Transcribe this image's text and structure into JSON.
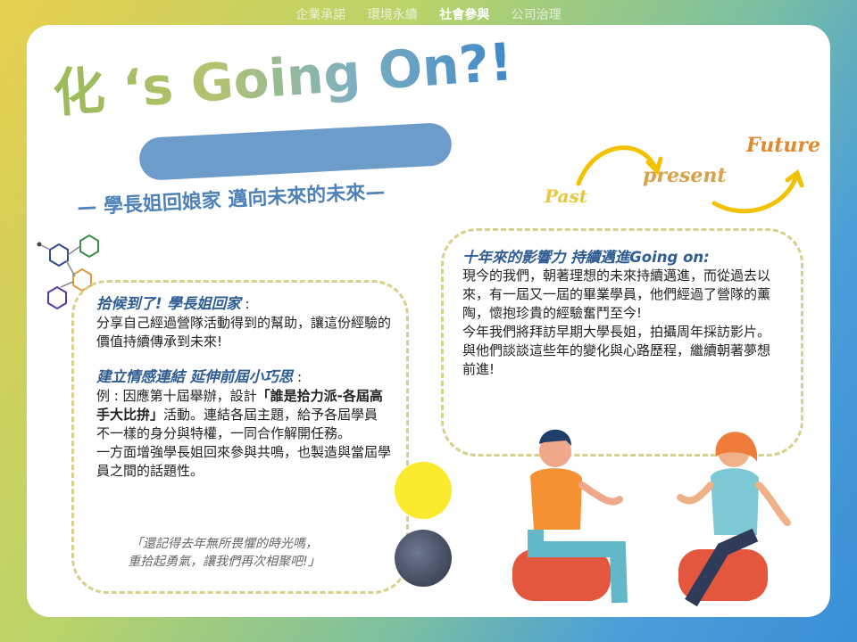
{
  "nav": {
    "items": [
      {
        "label": "企業承諾",
        "active": false
      },
      {
        "label": "環境永續",
        "active": false
      },
      {
        "label": "社會參與",
        "active": true
      },
      {
        "label": "公司治理",
        "active": false
      }
    ]
  },
  "banner": {
    "title": "化 ‘s Going On?!",
    "subtitle": "— 學長姐回娘家 邁向未來的未來—"
  },
  "timeline": {
    "past": "Past",
    "present": "present",
    "future": "Future"
  },
  "left_panel": {
    "heading1": "拾候到了! 學長姐回家",
    "heading1_suffix": " :",
    "body1": "分享自己經過營隊活動得到的幫助，讓這份經驗的價值持續傳承到未來!",
    "heading2": "建立情感連結  延伸前屆小巧思",
    "heading2_suffix": " :",
    "body2_prefix": "例 : 因應第十屆舉辦，設計",
    "body2_highlight": "「誰是拾力派-各屆高手大比拚」",
    "body2_suffix": "活動。連結各屆主題，給予各屆學員不一樣的身分與特權，一同合作解開任務。",
    "body3": "一方面增強學長姐回來參與共鳴，也製造與當屆學員之間的話題性。",
    "quote_line1": "「還記得去年無所畏懼的時光嗎，",
    "quote_line2": "重拾起勇氣，讓我們再次相聚吧!」"
  },
  "right_panel": {
    "heading": "十年來的影響力 持續邁進Going on:",
    "body1": "現今的我們，朝著理想的未來持續邁進，而從過去以來，有一屆又一屆的畢業學員，他們經過了營隊的薰陶，懷抱珍貴的經驗奮鬥至今!",
    "body2": "今年我們將拜訪早期大學長姐，拍攝周年採訪影片。與他們談談這些年的變化與心路歷程，繼續朝著夢想前進!"
  },
  "colors": {
    "accent_blue": "#2f5d93",
    "dash_border": "#d8d08c",
    "pill": "#6e9cca"
  }
}
